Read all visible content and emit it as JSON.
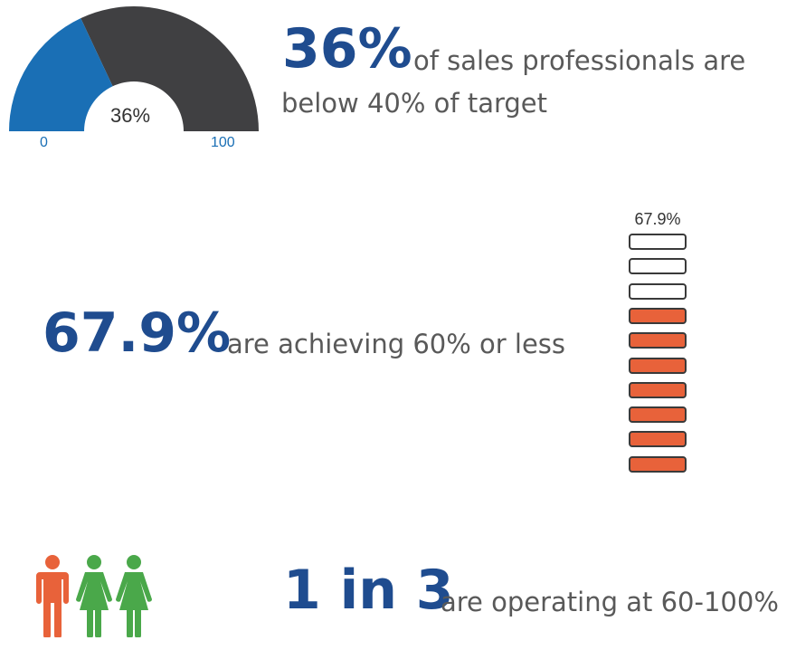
{
  "stat1": {
    "gauge": {
      "value_percent": 36,
      "center_label": "36%",
      "min_label": "0",
      "max_label": "100",
      "filled_color": "#1a6fb5",
      "remaining_color": "#404042"
    },
    "big": "36%",
    "text_line1": "of sales professionals are",
    "text_line2": "below 40% of target"
  },
  "stat2": {
    "big": "67.9%",
    "text": "are achieving 60% or less",
    "meter": {
      "label": "67.9%",
      "total_segments": 10,
      "filled_segments": 7,
      "filled_color": "#e8623a"
    }
  },
  "stat3": {
    "big": "1 in 3",
    "text": "are operating at 60-100%",
    "figures": [
      {
        "icon": "man-icon",
        "color": "#e8623a"
      },
      {
        "icon": "woman-icon",
        "color": "#4aa84a"
      },
      {
        "icon": "woman-icon",
        "color": "#4aa84a"
      }
    ]
  }
}
